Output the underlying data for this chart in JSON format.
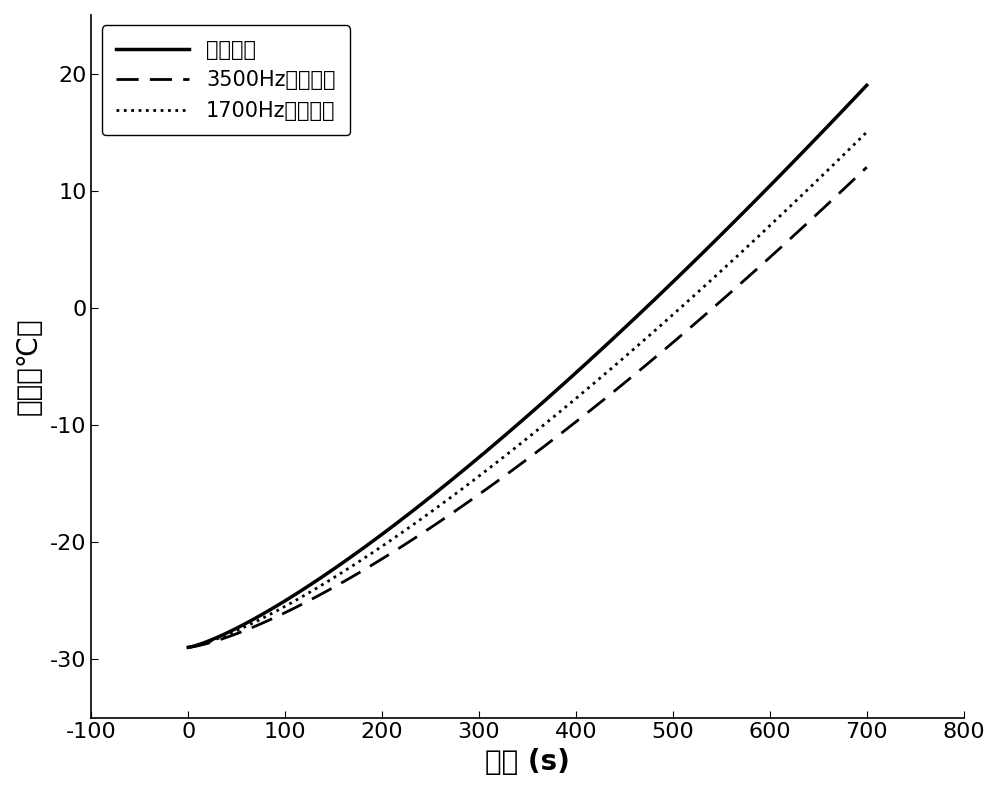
{
  "title": "",
  "xlabel": "时间 (s)",
  "ylabel": "温度（℃）",
  "xlim": [
    -100,
    800
  ],
  "ylim": [
    -35,
    25
  ],
  "xticks": [
    -100,
    0,
    100,
    200,
    300,
    400,
    500,
    600,
    700,
    800
  ],
  "yticks": [
    -30,
    -20,
    -10,
    0,
    10,
    20
  ],
  "line1_label": "变频变幅",
  "line2_label": "3500Hz恒频变幅",
  "line3_label": "1700Hz恒频变幅",
  "t_start": 0,
  "t_end": 700,
  "T_start": -29.0,
  "line1_T_end": 19.0,
  "line2_T_end": 12.0,
  "line3_T_end": 15.0,
  "line1_power": 1.28,
  "line2_power": 1.35,
  "line3_power": 1.3,
  "line1_color": "#000000",
  "line2_color": "#000000",
  "line3_color": "#000000",
  "background_color": "#ffffff",
  "xlabel_fontsize": 20,
  "ylabel_fontsize": 20,
  "tick_fontsize": 16,
  "legend_fontsize": 15
}
